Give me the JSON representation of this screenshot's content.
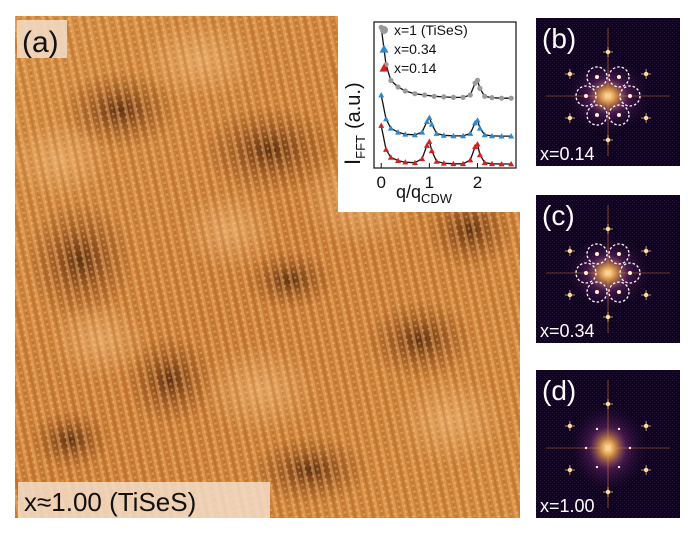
{
  "panel_a": {
    "label": "(a)",
    "caption": "x≈1.00 (TiSeS)"
  },
  "fft_panels": [
    {
      "label": "(b)",
      "caption": "x=0.14",
      "circles": true
    },
    {
      "label": "(c)",
      "caption": "x=0.34",
      "circles": true
    },
    {
      "label": "(d)",
      "caption": "x=1.00",
      "circles": false
    }
  ],
  "chart_data": {
    "type": "line",
    "ylabel": "I",
    "ylabel_sub": "FFT",
    "ylabel_unit": "(a.u.)",
    "xlabel": "q/q",
    "xlabel_sub": "CDW",
    "xticks": [
      0,
      1,
      2
    ],
    "xlim": [
      -0.15,
      2.8
    ],
    "colors": {
      "gray": "#9a9a9a",
      "blue": "#2f86c8",
      "red": "#d62020"
    },
    "series": [
      {
        "name": "x=1 (TiSeS)",
        "marker": "circle",
        "color": "#9a9a9a",
        "offset": 2.2,
        "x": [
          0.0,
          0.1,
          0.2,
          0.35,
          0.5,
          0.7,
          0.9,
          1.1,
          1.3,
          1.5,
          1.7,
          1.85,
          1.95,
          2.0,
          2.05,
          2.15,
          2.3,
          2.5,
          2.7
        ],
        "y": [
          3.0,
          1.6,
          1.0,
          0.75,
          0.6,
          0.5,
          0.45,
          0.4,
          0.38,
          0.36,
          0.36,
          0.45,
          0.9,
          1.0,
          0.7,
          0.4,
          0.35,
          0.33,
          0.33
        ]
      },
      {
        "name": "x=0.34",
        "marker": "triangle",
        "color": "#2f86c8",
        "offset": 1.05,
        "x": [
          0.0,
          0.1,
          0.2,
          0.35,
          0.5,
          0.7,
          0.85,
          0.95,
          1.0,
          1.05,
          1.15,
          1.3,
          1.5,
          1.7,
          1.85,
          1.95,
          2.0,
          2.05,
          2.15,
          2.3,
          2.5,
          2.7
        ],
        "y": [
          1.6,
          0.7,
          0.35,
          0.2,
          0.12,
          0.1,
          0.2,
          0.6,
          0.75,
          0.5,
          0.15,
          0.08,
          0.06,
          0.06,
          0.15,
          0.55,
          0.65,
          0.35,
          0.1,
          0.06,
          0.05,
          0.05
        ]
      },
      {
        "name": "x=0.14",
        "marker": "triangle",
        "color": "#d62020",
        "offset": 0.0,
        "x": [
          0.0,
          0.1,
          0.2,
          0.35,
          0.5,
          0.7,
          0.85,
          0.95,
          1.0,
          1.05,
          1.15,
          1.3,
          1.5,
          1.7,
          1.85,
          1.95,
          2.0,
          2.05,
          2.15,
          2.3,
          2.5,
          2.7
        ],
        "y": [
          1.5,
          0.6,
          0.3,
          0.18,
          0.12,
          0.1,
          0.25,
          0.75,
          0.9,
          0.55,
          0.15,
          0.08,
          0.06,
          0.06,
          0.2,
          0.7,
          0.8,
          0.4,
          0.1,
          0.06,
          0.05,
          0.05
        ]
      }
    ]
  }
}
